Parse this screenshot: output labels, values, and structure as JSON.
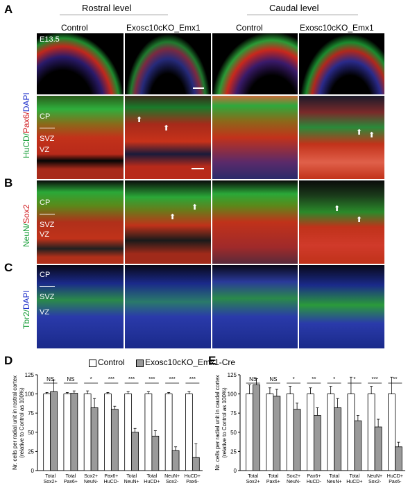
{
  "figure": {
    "panel_A": "A",
    "panel_B": "B",
    "panel_C": "C",
    "panel_D": "D",
    "panel_E": "E",
    "rostral_level": "Rostral level",
    "caudal_level": "Caudal level",
    "col_control": "Control",
    "col_ko": "Exosc10cKO_Emx1",
    "age": "E13.5",
    "stain_A_green": "HuCD/",
    "stain_A_red": "Pax6/",
    "stain_A_blue": "DAPI",
    "stain_B_green": "NeuN/",
    "stain_B_red": "Sox2",
    "stain_C_green": "Tbr2/",
    "stain_C_blue": "DAPI",
    "cp": "CP",
    "svz": "SVZ",
    "vz": "VZ",
    "colors": {
      "green": "#1a9e3a",
      "red": "#d0181c",
      "blue": "#2233cc",
      "bar_ko": "#9a9a9a"
    }
  },
  "chart_legend": {
    "control": "Control",
    "ko": "Exosc10cKO_Emx1-Cre"
  },
  "chart_data": [
    {
      "type": "bar",
      "panel": "D",
      "ylabel_line1": "Nr. cells per radial unit in rostral cortex",
      "ylabel_line2": "(relative to Control as 100%)",
      "ylim": [
        0,
        125
      ],
      "yticks": [
        "0",
        "25",
        "50",
        "75",
        "100",
        "125"
      ],
      "categories": [
        [
          "Total",
          "Sox2+"
        ],
        [
          "Total",
          "Pax6+"
        ],
        [
          "Sox2+",
          "NeuN-"
        ],
        [
          "Pax6+",
          "HuCD-"
        ],
        [
          "Total",
          "NeuN+"
        ],
        [
          "Total",
          "HuCD+"
        ],
        [
          "NeuN+",
          "Sox2-"
        ],
        [
          "HuCD+",
          "Pax6-"
        ]
      ],
      "significance": [
        "NS",
        "NS",
        "*",
        "***",
        "***",
        "***",
        "***",
        "***"
      ],
      "series": [
        {
          "name": "Control",
          "values": [
            100,
            100,
            100,
            100,
            100,
            100,
            100,
            100
          ],
          "errors": [
            2,
            2,
            4,
            2,
            3,
            3,
            2,
            3
          ]
        },
        {
          "name": "Exosc10cKO_Emx1-Cre",
          "values": [
            103,
            101,
            82,
            80,
            50,
            45,
            26,
            17
          ],
          "errors": [
            15,
            3,
            12,
            4,
            5,
            7,
            5,
            18
          ]
        }
      ]
    },
    {
      "type": "bar",
      "panel": "E",
      "ylabel_line1": "Nr. cells per radial unit in caudal cortex",
      "ylabel_line2": "(relative to Control as 100%)",
      "ylim": [
        0,
        125
      ],
      "yticks": [
        "0",
        "25",
        "50",
        "75",
        "100",
        "125"
      ],
      "categories": [
        [
          "Total",
          "Sox2+"
        ],
        [
          "Total",
          "Pax6+"
        ],
        [
          "Sox2+",
          "NeuN-"
        ],
        [
          "Pax6+",
          "HuCD-"
        ],
        [
          "Total",
          "NeuN+"
        ],
        [
          "Total",
          "HuCD+"
        ],
        [
          "NeuN+",
          "Sox2-"
        ],
        [
          "HuCD+",
          "Pax6-"
        ]
      ],
      "significance": [
        "NS",
        "NS",
        "*",
        "**",
        "*",
        "*",
        "***",
        "**"
      ],
      "series": [
        {
          "name": "Control",
          "values": [
            100,
            100,
            100,
            100,
            100,
            100,
            100,
            100
          ],
          "errors": [
            12,
            8,
            10,
            8,
            10,
            22,
            10,
            22
          ]
        },
        {
          "name": "Exosc10cKO_Emx1-Cre",
          "values": [
            112,
            97,
            80,
            72,
            82,
            65,
            57,
            31
          ],
          "errors": [
            8,
            9,
            8,
            10,
            12,
            7,
            10,
            6
          ]
        }
      ]
    }
  ]
}
